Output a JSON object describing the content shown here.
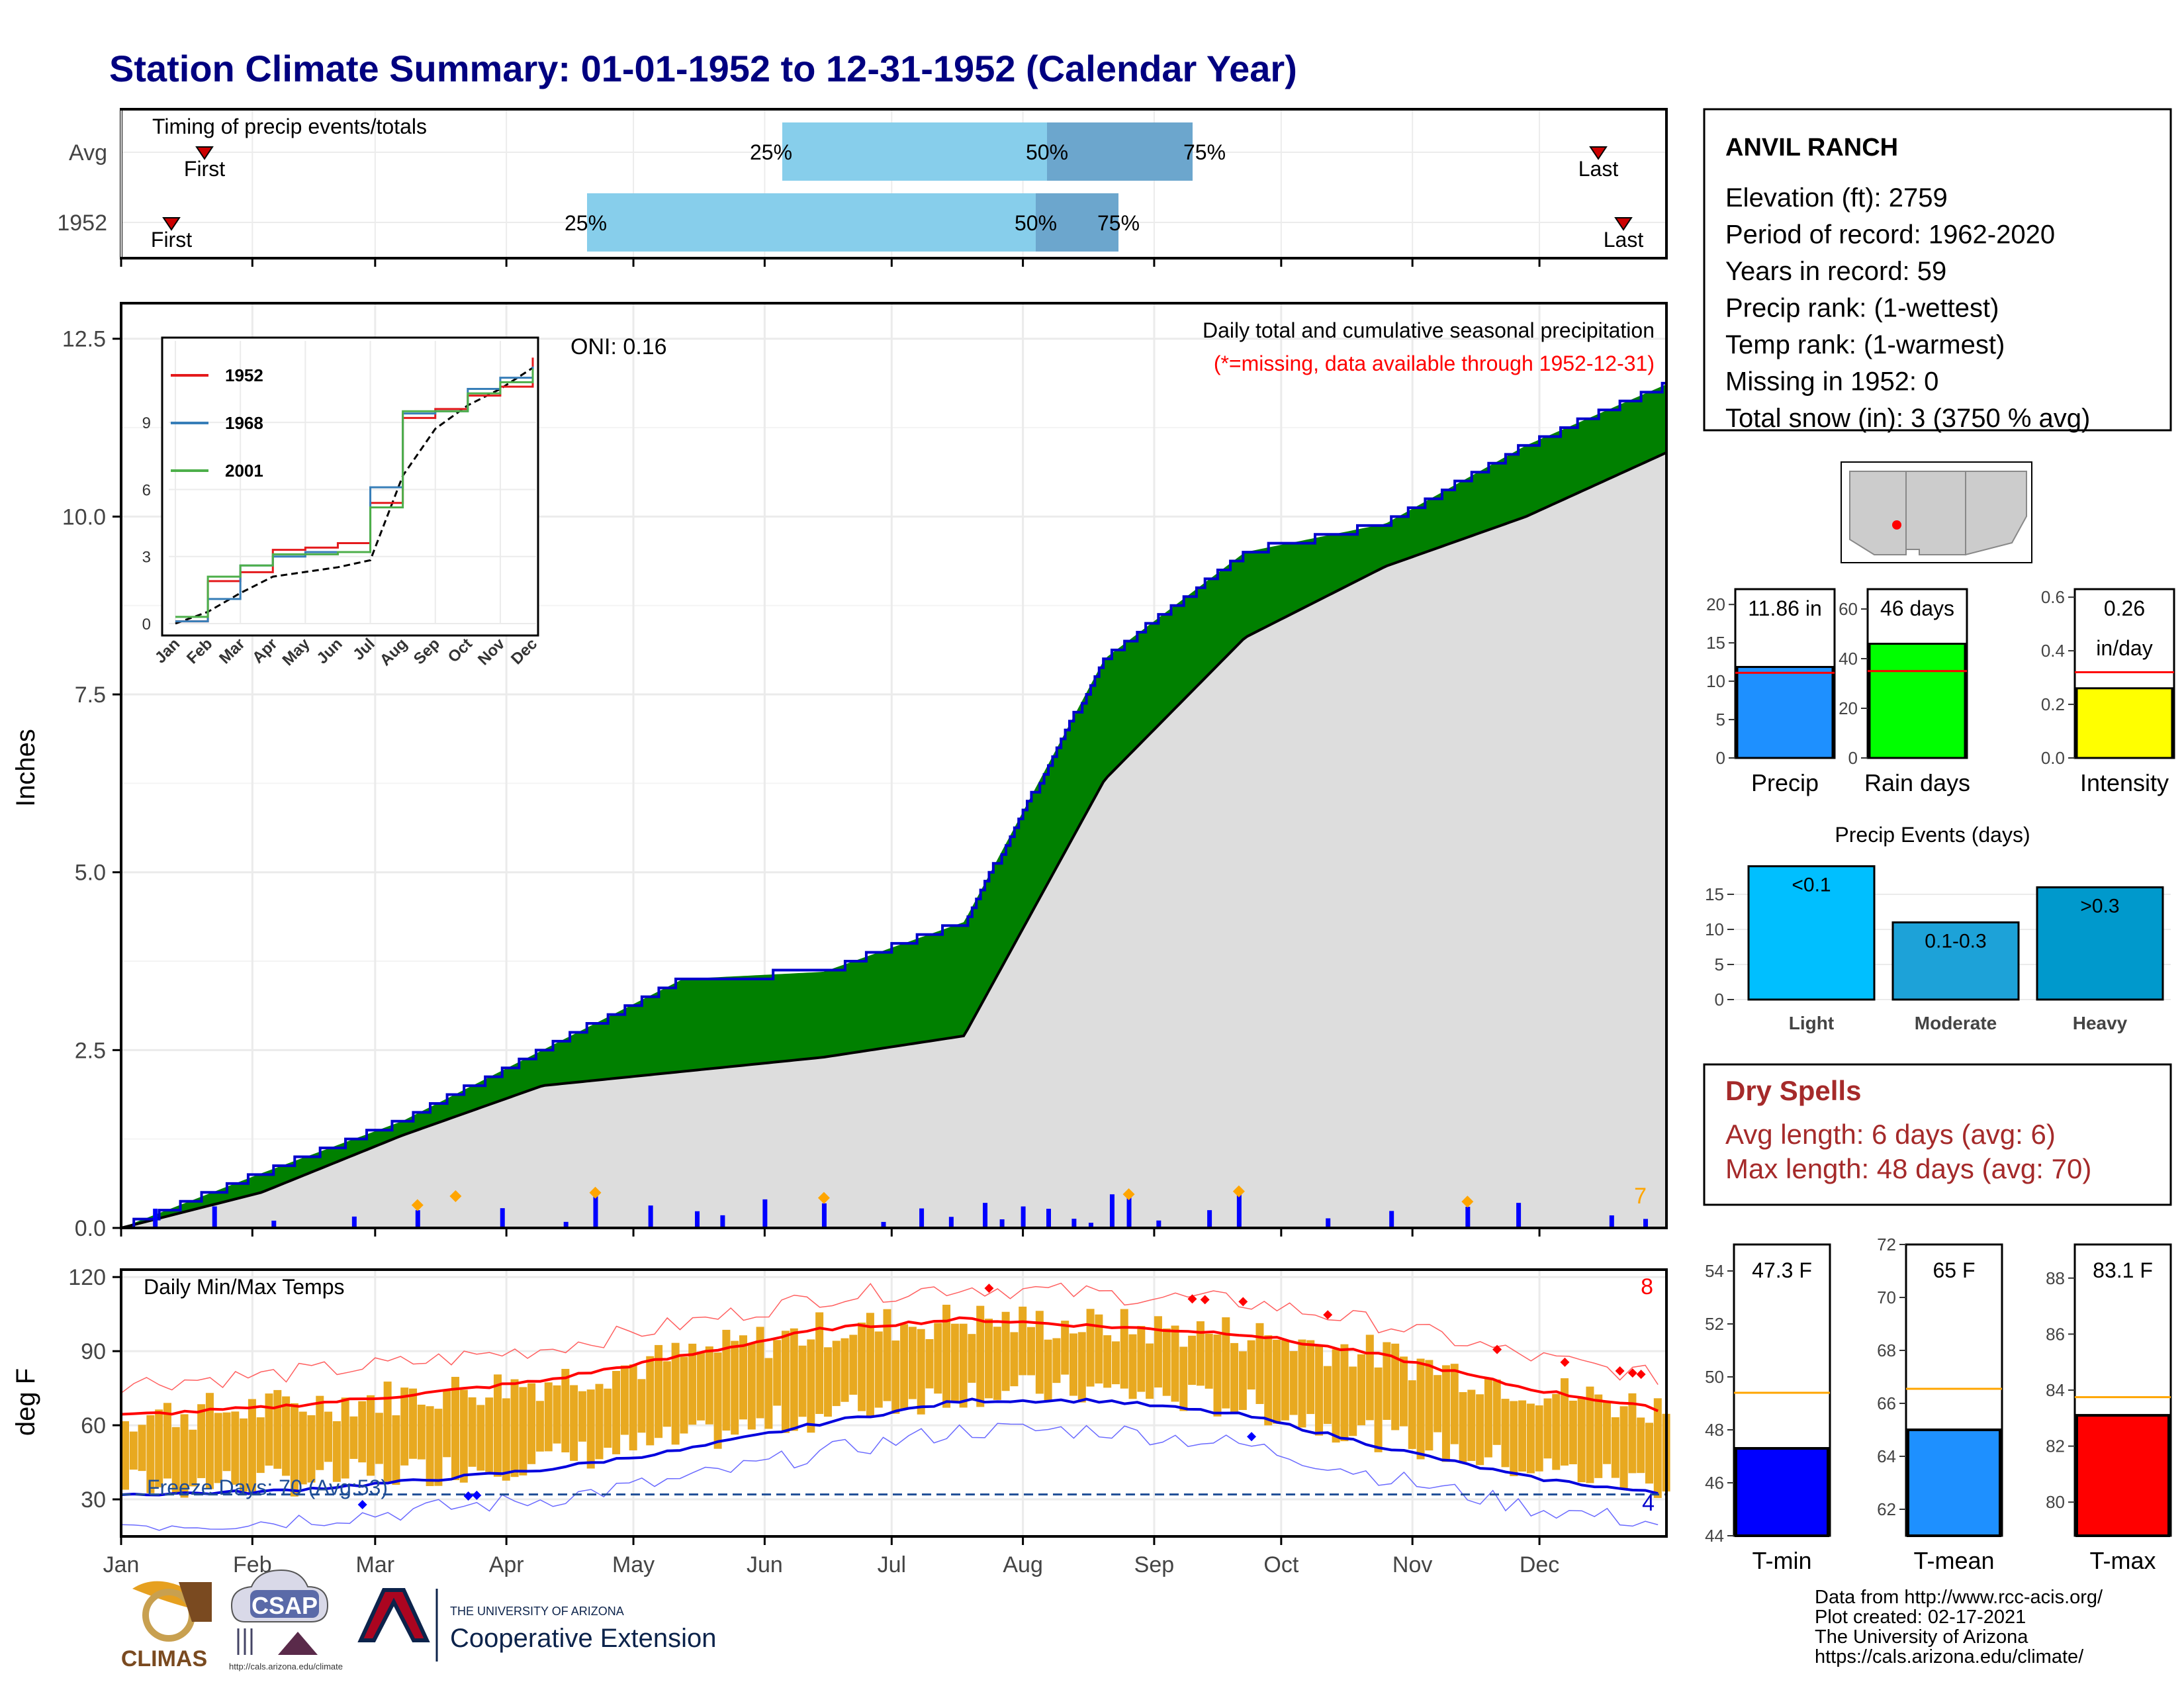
{
  "title": "Station Climate Summary: 01-01-1952 to 12-31-1952 (Calendar Year)",
  "station": {
    "name": "ANVIL RANCH",
    "lines": [
      "Elevation (ft): 2759",
      "Period of record: 1962-2020",
      "Years in record: 59",
      "Precip rank:  (1-wettest)",
      "Temp rank:  (1-warmest)",
      "Missing in 1952: 0",
      "Total snow (in): 3 (3750 % avg)"
    ]
  },
  "timing": {
    "title": "Timing of precip events/totals",
    "rows": [
      {
        "label": "Avg",
        "first_label": "First",
        "last_label": "Last",
        "p25": "25%",
        "p50": "50%",
        "p75": "75%"
      },
      {
        "label": "1952",
        "first_label": "First",
        "last_label": "Last",
        "p25": "25%",
        "p50": "50%",
        "p75": "75%"
      }
    ]
  },
  "precip_panel": {
    "ylabel": "Inches",
    "oni": "ONI: 0.16",
    "subtitle": "Daily total and cumulative seasonal precipitation",
    "missing_note": "(*=missing, data available through 1952-12-31)",
    "count_label": "7",
    "yticks": [
      "0.0",
      "2.5",
      "5.0",
      "7.5",
      "10.0",
      "12.5"
    ],
    "colors": {
      "above": "#008000",
      "below": "#8B5A00",
      "normal": "#dddddd",
      "daily_bar": "#0000ff",
      "marker": "#ffa500"
    }
  },
  "inset": {
    "legend": [
      "1952",
      "1968",
      "2001"
    ],
    "legend_colors": [
      "#e41a1c",
      "#377eb8",
      "#4daf4a"
    ],
    "yticks": [
      "0",
      "3",
      "6",
      "9"
    ],
    "xticks": [
      "Jan",
      "Feb",
      "Mar",
      "Apr",
      "May",
      "Jun",
      "Jul",
      "Aug",
      "Sep",
      "Oct",
      "Nov",
      "Dec"
    ]
  },
  "temp_panel": {
    "ylabel": "deg F",
    "title": "Daily Min/Max Temps",
    "freeze": "Freeze Days: 70 (Avg:53)",
    "count_hi": "8",
    "count_lo": "4",
    "yticks": [
      "30",
      "60",
      "90",
      "120"
    ],
    "months": [
      "Jan",
      "Feb",
      "Mar",
      "Apr",
      "May",
      "Jun",
      "Jul",
      "Aug",
      "Sep",
      "Oct",
      "Nov",
      "Dec"
    ]
  },
  "bar_stats": [
    {
      "name": "Precip",
      "value_text": "11.86 in",
      "yticks": [
        "0",
        "5",
        "10",
        "15",
        "20"
      ],
      "color": "#1e90ff"
    },
    {
      "name": "Rain days",
      "value_text": "46 days",
      "yticks": [
        "0",
        "20",
        "40",
        "60"
      ],
      "color": "#00ff00"
    },
    {
      "name": "Intensity",
      "value_text": "0.26",
      "value_text2": "in/day",
      "yticks": [
        "0.0",
        "0.2",
        "0.4",
        "0.6"
      ],
      "color": "#ffff00"
    }
  ],
  "events": {
    "title": "Precip Events (days)",
    "categories": [
      "Light",
      "Moderate",
      "Heavy"
    ],
    "labels": [
      "<0.1",
      "0.1-0.3",
      ">0.3"
    ],
    "yticks": [
      "0",
      "5",
      "10",
      "15"
    ],
    "colors": [
      "#00bfff",
      "#1da2d8",
      "#0099cc"
    ]
  },
  "dry_spells": {
    "title": "Dry Spells",
    "avg": "Avg length: 6 days (avg: 6)",
    "max": "Max length: 48 days (avg: 70)"
  },
  "temp_stats": [
    {
      "name": "T-min",
      "value_text": "47.3 F",
      "yticks": [
        "44",
        "46",
        "48",
        "50",
        "52",
        "54"
      ],
      "color": "#0000ff"
    },
    {
      "name": "T-mean",
      "value_text": "65 F",
      "yticks": [
        "62",
        "64",
        "66",
        "68",
        "70",
        "72"
      ],
      "color": "#1e90ff"
    },
    {
      "name": "T-max",
      "value_text": "83.1 F",
      "yticks": [
        "80",
        "82",
        "84",
        "86",
        "88"
      ],
      "color": "#ff0000"
    }
  ],
  "credits": [
    "Data from http://www.rcc-acis.org/",
    "Plot created: 02-17-2021",
    "The University of Arizona",
    "https://cals.arizona.edu/climate/"
  ],
  "logos": {
    "climas": "CLIMAS",
    "csap": "CSAP",
    "csap_url": "http://cals.arizona.edu/climate",
    "ua_line1": "THE UNIVERSITY OF ARIZONA",
    "ua_line2": "Cooperative Extension"
  },
  "chart_data": [
    {
      "type": "area",
      "title": "Daily total and cumulative seasonal precipitation",
      "ylabel": "Inches",
      "ylim": [
        0,
        13
      ],
      "x": [
        "Jan",
        "Feb",
        "Mar",
        "Apr",
        "May",
        "Jun",
        "Jul",
        "Aug",
        "Sep",
        "Oct",
        "Nov",
        "Dec"
      ],
      "series": [
        {
          "name": "1952",
          "values": [
            0.0,
            0.77,
            1.5,
            2.5,
            3.5,
            3.6,
            4.3,
            8.0,
            9.5,
            9.9,
            11.0,
            11.86
          ]
        },
        {
          "values": [
            0.0,
            0.5,
            1.3,
            2.0,
            2.2,
            2.4,
            2.7,
            6.3,
            8.3,
            9.3,
            10.0,
            10.9
          ]
        }
      ]
    },
    {
      "type": "line",
      "ylabel": "deg F",
      "ylim": [
        15,
        120
      ],
      "x": [
        "Jan",
        "Feb",
        "Mar",
        "Apr",
        "May",
        "Jun",
        "Jul",
        "Aug",
        "Sep",
        "Oct",
        "Nov",
        "Dec"
      ],
      "series": [
        {
          "values": [
            64,
            67,
            72,
            78,
            88,
            99,
            103,
            100,
            97,
            88,
            75,
            66
          ]
        },
        {
          "values": [
            32,
            33,
            37,
            42,
            50,
            61,
            70,
            70,
            64,
            51,
            39,
            32
          ]
        }
      ]
    },
    {
      "type": "bar",
      "title": "Precip Events (days)",
      "categories": [
        "Light",
        "Moderate",
        "Heavy"
      ],
      "values": [
        19,
        11,
        16
      ],
      "ylim": [
        0,
        20
      ]
    },
    {
      "type": "bar",
      "categories": [
        "Precip",
        "Rain days",
        "Intensity"
      ],
      "values": [
        11.86,
        46,
        0.26
      ]
    },
    {
      "type": "bar",
      "categories": [
        "T-min",
        "T-mean",
        "T-max"
      ],
      "values": [
        47.3,
        65,
        83.1
      ]
    }
  ]
}
